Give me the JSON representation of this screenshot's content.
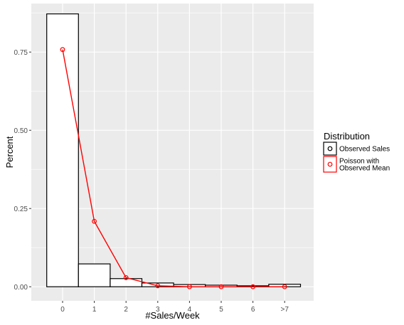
{
  "chart_data": {
    "type": "bar",
    "categories": [
      "0",
      "1",
      "2",
      "3",
      "4",
      "5",
      "6",
      ">7"
    ],
    "xlabel": "#Sales/Week",
    "ylabel": "Percent",
    "ylim": [
      -0.045,
      0.905
    ],
    "yticks": [
      0.0,
      0.25,
      0.5,
      0.75
    ],
    "ytick_labels": [
      "0.00",
      "0.25",
      "0.50",
      "0.75"
    ],
    "grid": true,
    "series": [
      {
        "name": "Observed Sales",
        "kind": "bar",
        "color": "#000000",
        "values": [
          0.872,
          0.073,
          0.026,
          0.012,
          0.007,
          0.005,
          0.003,
          0.008
        ]
      },
      {
        "name": "Poisson with Observed Mean",
        "kind": "line+points",
        "color": "#ff0000",
        "values": [
          0.758,
          0.209,
          0.029,
          0.003,
          0.0,
          0.0,
          0.0,
          0.0
        ]
      }
    ],
    "legend": {
      "title": "Distribution",
      "position": "right",
      "entries": [
        {
          "lines": [
            "Observed Sales"
          ],
          "color": "#000000"
        },
        {
          "lines": [
            "Poisson with",
            "Observed Mean"
          ],
          "color": "#ff0000"
        }
      ]
    },
    "colors": {
      "panel_bg": "#ebebeb",
      "grid": "#ffffff",
      "bar_fill": "#ffffff"
    }
  }
}
